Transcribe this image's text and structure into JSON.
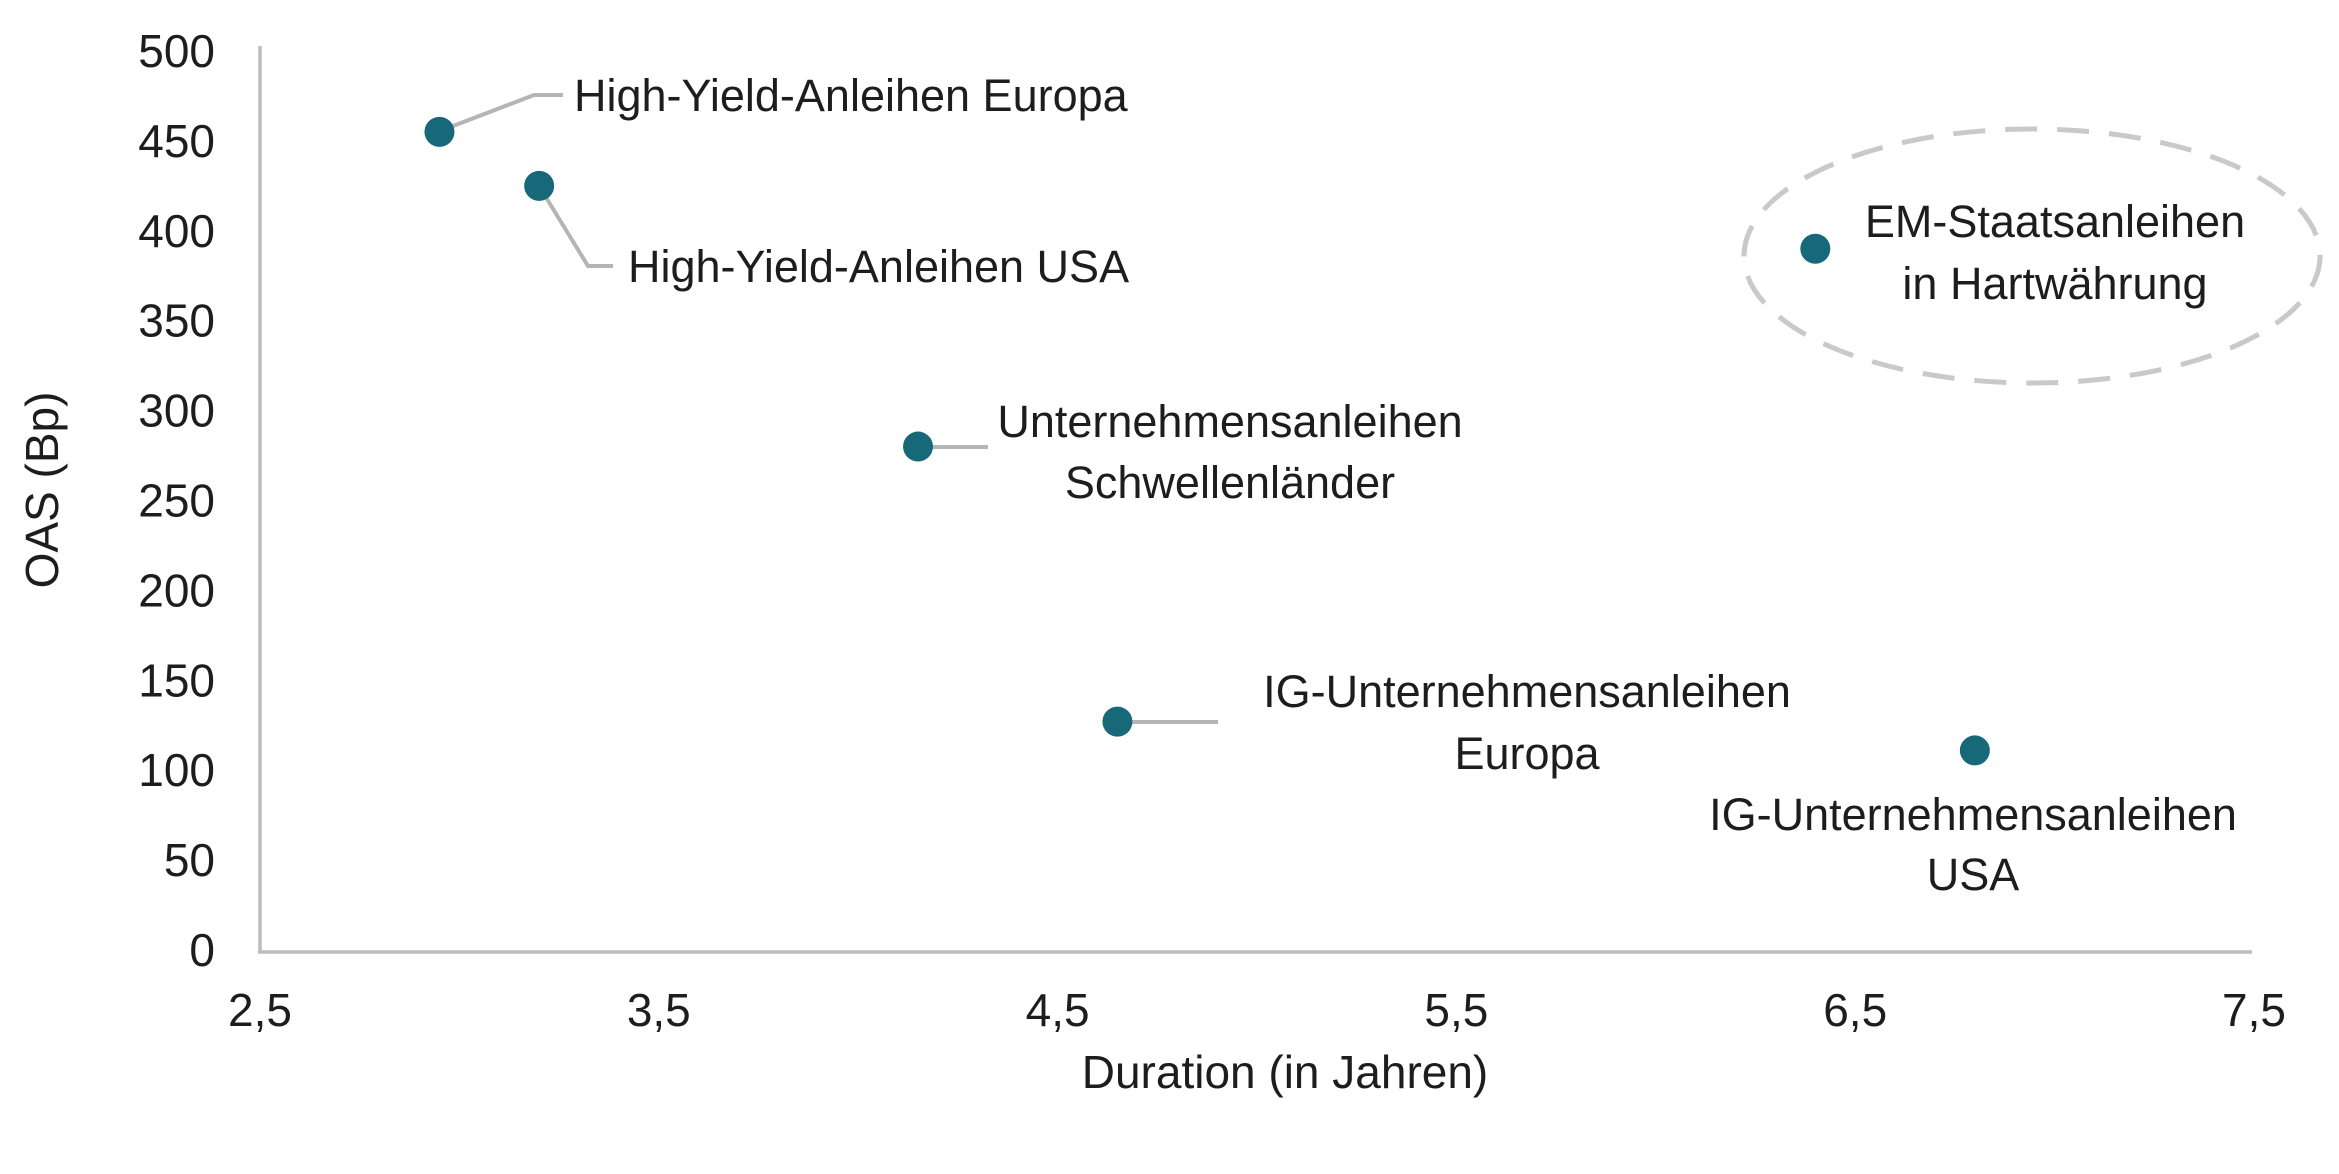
{
  "chart_data": {
    "type": "scatter",
    "title": "",
    "xlabel": "Duration (in Jahren)",
    "ylabel": "OAS (Bp)",
    "xlim": [
      2.5,
      7.5
    ],
    "ylim": [
      0,
      500
    ],
    "grid": false,
    "legend": "none",
    "x_ticks": {
      "values": [
        2.5,
        3.5,
        4.5,
        5.5,
        6.5,
        7.5
      ],
      "labels": [
        "2,5",
        "3,5",
        "4,5",
        "5,5",
        "6,5",
        "7,5"
      ]
    },
    "y_ticks": {
      "values": [
        0,
        50,
        100,
        150,
        200,
        250,
        300,
        350,
        400,
        450,
        500
      ],
      "labels": [
        "0",
        "50",
        "100",
        "150",
        "200",
        "250",
        "300",
        "350",
        "400",
        "450",
        "500"
      ]
    },
    "points": [
      {
        "x": 2.95,
        "y": 455,
        "label_lines": [
          "High-Yield-Anleihen Europa"
        ]
      },
      {
        "x": 3.2,
        "y": 425,
        "label_lines": [
          "High-Yield-Anleihen USA"
        ]
      },
      {
        "x": 4.15,
        "y": 280,
        "label_lines": [
          "Unternehmensanleihen",
          "Schwellenländer"
        ]
      },
      {
        "x": 4.65,
        "y": 127,
        "label_lines": [
          "IG-Unternehmensanleihen",
          "Europa"
        ]
      },
      {
        "x": 6.4,
        "y": 390,
        "label_lines": [
          "EM-Staatsanleihen",
          "in Hartwährung"
        ],
        "highlighted": true
      },
      {
        "x": 6.8,
        "y": 111,
        "label_lines": [
          "IG-Unternehmensanleihen",
          "USA"
        ]
      }
    ],
    "annotations": {
      "highlight": "dashed ellipse around EM-Staatsanleihen in Hartwährung"
    }
  },
  "colors": {
    "point": "#17697A",
    "axis": "#bdbdbd",
    "leader": "#b5b5b5",
    "ellipse": "#c9c9c9",
    "text": "#1d1d1d",
    "background": "#ffffff"
  }
}
